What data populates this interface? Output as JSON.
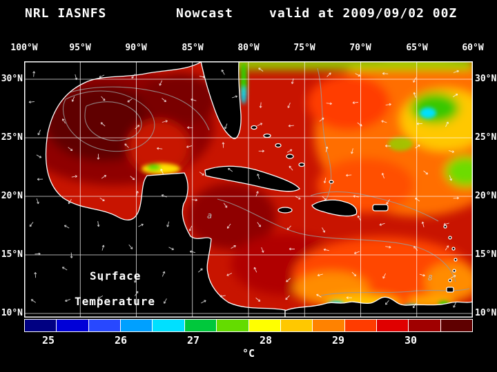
{
  "header": {
    "model": "NRL IASNFS",
    "product": "Nowcast",
    "valid": "valid at 2009/09/02 00Z"
  },
  "axes": {
    "lon": [
      "100°W",
      "95°W",
      "90°W",
      "85°W",
      "80°W",
      "75°W",
      "70°W",
      "65°W",
      "60°W"
    ],
    "lat": [
      "30°N",
      "25°N",
      "20°N",
      "15°N",
      "10°N"
    ]
  },
  "map": {
    "overlay_line1": "Surface",
    "overlay_line2": "Temperature",
    "contour_labels": [
      "a",
      "8"
    ]
  },
  "colorbar": {
    "unit": "°C",
    "ticks": [
      "25",
      "26",
      "27",
      "28",
      "29",
      "30"
    ],
    "segments": [
      "#000082",
      "#0000d8",
      "#2848ff",
      "#00a0ff",
      "#00e0ff",
      "#00c83c",
      "#64dc00",
      "#ffff00",
      "#ffc800",
      "#ff8200",
      "#ff3c00",
      "#e00000",
      "#a00000",
      "#5f0000"
    ]
  }
}
